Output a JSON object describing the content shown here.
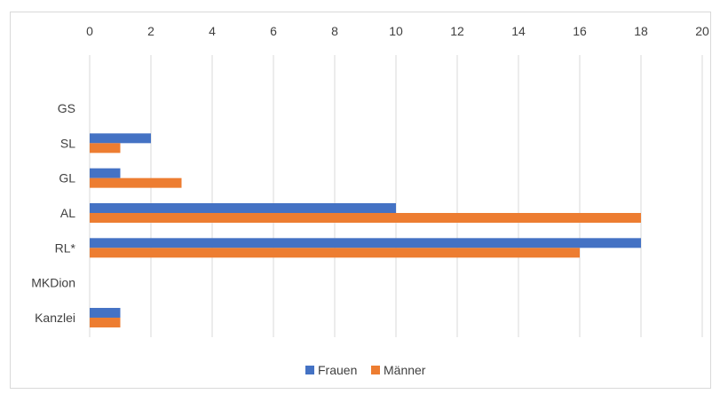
{
  "chart_data": {
    "type": "bar",
    "orientation": "horizontal",
    "categories": [
      "GS",
      "SL",
      "GL",
      "AL",
      "RL*",
      "MKDion",
      "Kanzlei"
    ],
    "series": [
      {
        "name": "Frauen",
        "color": "#4472C4",
        "values": [
          0,
          2,
          1,
          10,
          18,
          0,
          1
        ]
      },
      {
        "name": "Männer",
        "color": "#ED7D31",
        "values": [
          0,
          1,
          3,
          18,
          16,
          0,
          1
        ]
      }
    ],
    "x_ticks": [
      "0",
      "2",
      "4",
      "6",
      "8",
      "10",
      "12",
      "14",
      "16",
      "18",
      "20"
    ],
    "xlim": [
      0,
      20
    ],
    "x_axis_position": "top",
    "grid": true,
    "legend_position": "bottom"
  }
}
